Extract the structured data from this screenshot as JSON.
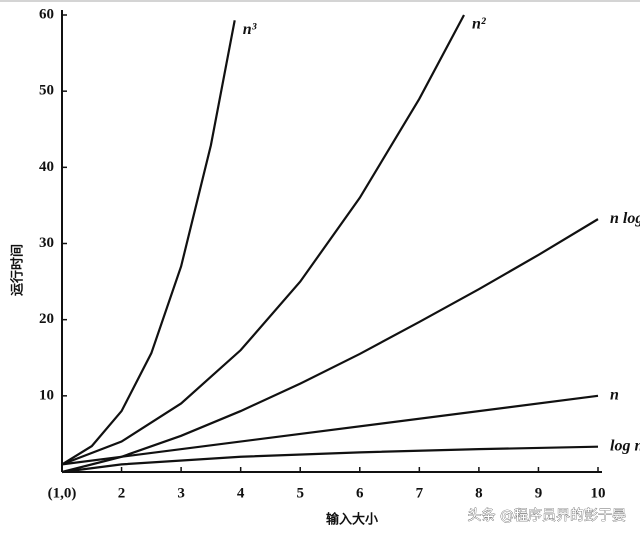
{
  "chart_data": {
    "type": "line",
    "xlabel": "输入大小",
    "ylabel": "运行时间",
    "xlim": [
      1,
      10
    ],
    "ylim": [
      0,
      60
    ],
    "xticks": [
      {
        "value": 1,
        "label": "(1,0)"
      },
      2,
      3,
      4,
      5,
      6,
      7,
      8,
      9,
      10
    ],
    "yticks": [
      10,
      20,
      30,
      40,
      50,
      60
    ],
    "series": [
      {
        "name": "n³",
        "color": "#111111",
        "x": [
          1,
          1.5,
          2,
          2.5,
          3,
          3.5,
          3.9
        ],
        "values": [
          1,
          3.4,
          8,
          15.6,
          27,
          42.9,
          59.3
        ]
      },
      {
        "name": "n²",
        "color": "#111111",
        "x": [
          1,
          2,
          3,
          4,
          5,
          6,
          7,
          7.75
        ],
        "values": [
          1,
          4,
          9,
          16,
          25,
          36,
          49,
          60
        ]
      },
      {
        "name": "n log n",
        "color": "#111111",
        "x": [
          1,
          2,
          3,
          4,
          5,
          6,
          7,
          8,
          9,
          10
        ],
        "values": [
          0,
          2,
          4.75,
          8,
          11.6,
          15.5,
          19.7,
          24,
          28.5,
          33.2
        ]
      },
      {
        "name": "n",
        "color": "#111111",
        "x": [
          1,
          10
        ],
        "values": [
          1,
          10
        ]
      },
      {
        "name": "log n",
        "color": "#111111",
        "x": [
          1,
          2,
          4,
          6,
          8,
          10
        ],
        "values": [
          0,
          1,
          2,
          2.58,
          3,
          3.32
        ]
      }
    ]
  },
  "watermark": "头条 @程序员界的彭于晏"
}
